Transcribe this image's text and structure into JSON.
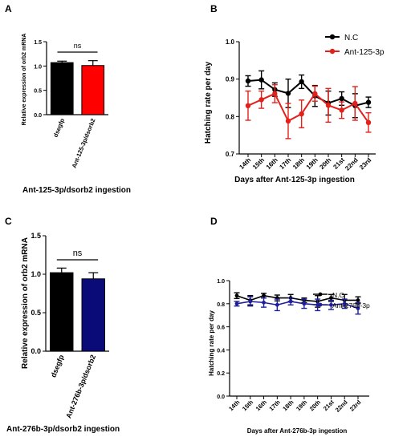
{
  "chart_data": [
    {
      "panel": "A",
      "type": "bar",
      "title": "",
      "xlabel": "",
      "ylabel": "Relative expression of orb2 mRNA",
      "ylim": [
        0,
        1.5
      ],
      "yticks": [
        "0.0",
        "0.5",
        "1.0",
        "1.5"
      ],
      "categories": [
        "dsegfp",
        "Ant-125-3p/dsorb2"
      ],
      "values": [
        1.07,
        1.01
      ],
      "errors": [
        0.03,
        0.1
      ],
      "colors": [
        "#000000",
        "#ff0000"
      ],
      "significance": "ns",
      "caption": "Ant-125-3p/dsorb2 ingestion"
    },
    {
      "panel": "B",
      "type": "line",
      "title": "",
      "xlabel": "Days after Ant-125-3p ingestion",
      "ylabel": "Hatching rate per day",
      "ylim": [
        0.7,
        1.0
      ],
      "yticks": [
        "0.7",
        "0.8",
        "0.9",
        "1.0"
      ],
      "categories": [
        "14th",
        "15th",
        "16th",
        "17th",
        "18th",
        "19th",
        "20th",
        "21st",
        "22nd",
        "23rd"
      ],
      "series": [
        {
          "name": "N.C",
          "color": "#000000",
          "values": [
            0.895,
            0.898,
            0.872,
            0.862,
            0.893,
            0.855,
            0.836,
            0.848,
            0.829,
            0.838
          ],
          "errors": [
            0.014,
            0.024,
            0.018,
            0.038,
            0.018,
            0.028,
            0.032,
            0.018,
            0.032,
            0.014
          ]
        },
        {
          "name": "Ant-125-3p",
          "color": "#e3211c",
          "values": [
            0.829,
            0.845,
            0.861,
            0.788,
            0.807,
            0.861,
            0.83,
            0.817,
            0.835,
            0.784
          ],
          "errors": [
            0.039,
            0.023,
            0.024,
            0.047,
            0.037,
            0.02,
            0.045,
            0.022,
            0.045,
            0.026
          ]
        }
      ],
      "legend": "top-right"
    },
    {
      "panel": "C",
      "type": "bar",
      "title": "",
      "xlabel": "",
      "ylabel": "Relative expression of orb2 mRNA",
      "ylim": [
        0,
        1.5
      ],
      "yticks": [
        "0.0",
        "0.5",
        "1.0",
        "1.5"
      ],
      "categories": [
        "dsegfp",
        "Ant-276b-3p/dsorb2"
      ],
      "values": [
        1.02,
        0.94
      ],
      "errors": [
        0.06,
        0.08
      ],
      "colors": [
        "#000000",
        "#0a0a78"
      ],
      "significance": "ns",
      "caption": "Ant-276b-3p/dsorb2 ingestion"
    },
    {
      "panel": "D",
      "type": "line",
      "title": "",
      "xlabel": "Days after Ant-276b-3p ingestion",
      "ylabel": "Hatching rate per day",
      "ylim": [
        0.0,
        1.0
      ],
      "yticks": [
        "0.0",
        "0.2",
        "0.4",
        "0.6",
        "0.8",
        "1.0"
      ],
      "categories": [
        "14th",
        "15th",
        "16th",
        "17th",
        "18th",
        "19th",
        "20th",
        "21st",
        "22nd",
        "23rd"
      ],
      "series": [
        {
          "name": "N.C",
          "color": "#000000",
          "values": [
            0.87,
            0.83,
            0.87,
            0.85,
            0.85,
            0.83,
            0.82,
            0.85,
            0.83,
            0.83
          ],
          "errors": [
            0.025,
            0.04,
            0.02,
            0.025,
            0.03,
            0.02,
            0.05,
            0.03,
            0.05,
            0.03
          ]
        },
        {
          "name": "Ant-276b-3p",
          "color": "#1f1f9e",
          "values": [
            0.8,
            0.82,
            0.81,
            0.79,
            0.82,
            0.8,
            0.79,
            0.79,
            0.8,
            0.76
          ],
          "errors": [
            0.02,
            0.04,
            0.04,
            0.05,
            0.03,
            0.04,
            0.05,
            0.04,
            0.04,
            0.05
          ]
        }
      ],
      "legend": "top-right"
    }
  ]
}
